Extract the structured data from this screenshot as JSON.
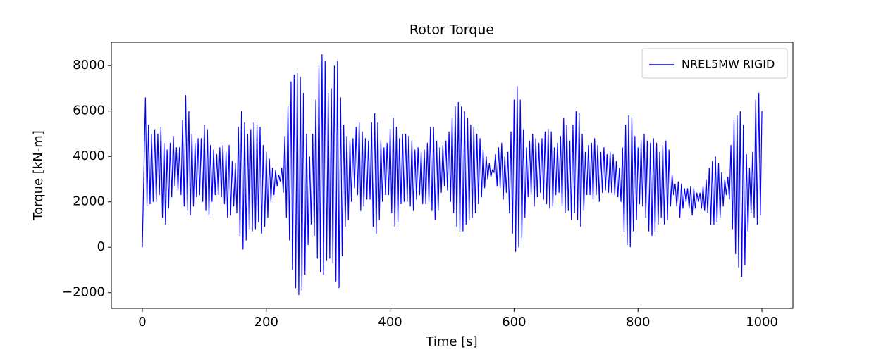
{
  "chart_data": {
    "type": "line",
    "title": "Rotor Torque",
    "x_label": "Time [s]",
    "y_label": "Torque [kN-m]",
    "xlim": [
      -50,
      1050
    ],
    "xticks": [
      0,
      200,
      400,
      600,
      800,
      1000
    ],
    "ylim": [
      -2690,
      9030
    ],
    "yticks": [
      {
        "value": -2000,
        "label": "−2000"
      },
      0,
      2000,
      4000,
      6000,
      8000
    ],
    "legend": "upper right",
    "x": [
      0,
      5,
      7.5,
      10,
      12.5,
      15,
      17.5,
      20,
      22.5,
      25,
      27.5,
      30,
      32.5,
      35,
      37.5,
      40,
      42.5,
      45,
      47.5,
      50,
      52.5,
      55,
      57.5,
      60,
      62.5,
      65,
      67.5,
      70,
      72.5,
      75,
      77.5,
      80,
      82.5,
      85,
      87.5,
      90,
      92.5,
      95,
      97.5,
      100,
      102.5,
      105,
      107.5,
      110,
      112.5,
      115,
      117.5,
      120,
      122.5,
      125,
      127.5,
      130,
      132.5,
      135,
      137.5,
      140,
      142.5,
      145,
      147.5,
      150,
      152.5,
      155,
      157.5,
      160,
      162.5,
      165,
      167.5,
      170,
      172.5,
      175,
      177.5,
      180,
      182.5,
      185,
      187.5,
      190,
      192.5,
      195,
      197.5,
      200,
      202.5,
      205,
      207.5,
      210,
      212.5,
      215,
      217.5,
      220,
      222.5,
      225,
      227.5,
      230,
      232.5,
      235,
      237.5,
      240,
      242.5,
      245,
      247.5,
      250,
      252.5,
      255,
      257.5,
      260,
      262.5,
      265,
      267.5,
      270,
      272.5,
      275,
      277.5,
      280,
      282.5,
      285,
      287.5,
      290,
      292.5,
      295,
      297.5,
      300,
      302.5,
      305,
      307.5,
      310,
      312.5,
      315,
      317.5,
      320,
      322.5,
      325,
      327.5,
      330,
      332.5,
      335,
      337.5,
      340,
      342.5,
      345,
      347.5,
      350,
      352.5,
      355,
      357.5,
      360,
      362.5,
      365,
      367.5,
      370,
      372.5,
      375,
      377.5,
      380,
      382.5,
      385,
      387.5,
      390,
      392.5,
      395,
      397.5,
      400,
      402.5,
      405,
      407.5,
      410,
      412.5,
      415,
      417.5,
      420,
      422.5,
      425,
      427.5,
      430,
      432.5,
      435,
      437.5,
      440,
      442.5,
      445,
      447.5,
      450,
      452.5,
      455,
      457.5,
      460,
      462.5,
      465,
      467.5,
      470,
      472.5,
      475,
      477.5,
      480,
      482.5,
      485,
      487.5,
      490,
      492.5,
      495,
      497.5,
      500,
      502.5,
      505,
      507.5,
      510,
      512.5,
      515,
      517.5,
      520,
      522.5,
      525,
      527.5,
      530,
      532.5,
      535,
      537.5,
      540,
      542.5,
      545,
      547.5,
      550,
      552.5,
      555,
      557.5,
      560,
      562.5,
      565,
      567.5,
      570,
      572.5,
      575,
      577.5,
      580,
      582.5,
      585,
      587.5,
      590,
      592.5,
      595,
      597.5,
      600,
      602.5,
      605,
      607.5,
      610,
      612.5,
      615,
      617.5,
      620,
      622.5,
      625,
      627.5,
      630,
      632.5,
      635,
      637.5,
      640,
      642.5,
      645,
      647.5,
      650,
      652.5,
      655,
      657.5,
      660,
      662.5,
      665,
      667.5,
      670,
      672.5,
      675,
      677.5,
      680,
      682.5,
      685,
      687.5,
      690,
      692.5,
      695,
      697.5,
      700,
      702.5,
      705,
      707.5,
      710,
      712.5,
      715,
      717.5,
      720,
      722.5,
      725,
      727.5,
      730,
      732.5,
      735,
      737.5,
      740,
      742.5,
      745,
      747.5,
      750,
      752.5,
      755,
      757.5,
      760,
      762.5,
      765,
      767.5,
      770,
      772.5,
      775,
      777.5,
      780,
      782.5,
      785,
      787.5,
      790,
      792.5,
      795,
      797.5,
      800,
      802.5,
      805,
      807.5,
      810,
      812.5,
      815,
      817.5,
      820,
      822.5,
      825,
      827.5,
      830,
      832.5,
      835,
      837.5,
      840,
      842.5,
      845,
      847.5,
      850,
      852.5,
      855,
      857.5,
      860,
      862.5,
      865,
      867.5,
      870,
      872.5,
      875,
      877.5,
      880,
      882.5,
      885,
      887.5,
      890,
      892.5,
      895,
      897.5,
      900,
      902.5,
      905,
      907.5,
      910,
      912.5,
      915,
      917.5,
      920,
      922.5,
      925,
      927.5,
      930,
      932.5,
      935,
      937.5,
      940,
      942.5,
      945,
      947.5,
      950,
      952.5,
      955,
      957.5,
      960,
      962.5,
      965,
      967.5,
      970,
      972.5,
      975,
      977.5,
      980,
      982.5,
      985,
      987.5,
      990,
      992.5,
      995,
      997.5,
      1000
    ],
    "series": [
      {
        "name": "NREL5MW RIGID",
        "color": "#0000ff",
        "values": [
          0,
          6600,
          1800,
          5400,
          1900,
          5000,
          2000,
          5200,
          2000,
          5000,
          2300,
          5300,
          1300,
          4600,
          1000,
          4300,
          1700,
          4600,
          2200,
          4900,
          2700,
          4400,
          2500,
          4400,
          2300,
          5600,
          1800,
          6700,
          1600,
          6000,
          1400,
          5000,
          1800,
          4600,
          2200,
          4800,
          2300,
          4800,
          2000,
          5400,
          1600,
          5200,
          1400,
          4500,
          2000,
          4300,
          2300,
          4100,
          2300,
          4400,
          2200,
          4500,
          1900,
          4200,
          1300,
          4500,
          1400,
          3800,
          1800,
          3700,
          1500,
          5300,
          500,
          6000,
          -100,
          5500,
          300,
          5000,
          800,
          5200,
          700,
          5500,
          800,
          5400,
          1100,
          5300,
          600,
          4500,
          900,
          4200,
          1300,
          3900,
          2000,
          3500,
          2300,
          3400,
          2700,
          3200,
          2900,
          3500,
          2400,
          4900,
          1300,
          6200,
          300,
          7300,
          -1000,
          7600,
          -1800,
          7700,
          -2100,
          7500,
          -1900,
          6800,
          -1200,
          5000,
          100,
          4000,
          1000,
          5000,
          500,
          6500,
          -500,
          8000,
          -1100,
          8500,
          -1200,
          8200,
          -600,
          6800,
          -500,
          7000,
          -700,
          8000,
          -1500,
          8200,
          -1800,
          6600,
          -400,
          5400,
          900,
          4900,
          1200,
          4700,
          2000,
          4800,
          2600,
          5300,
          2300,
          5500,
          1600,
          5100,
          1800,
          4800,
          2100,
          4700,
          2100,
          5500,
          900,
          5900,
          600,
          5500,
          1200,
          4700,
          2000,
          4400,
          2300,
          4600,
          2300,
          5200,
          1500,
          5700,
          900,
          5300,
          1100,
          4800,
          1900,
          5000,
          2000,
          5000,
          2000,
          4900,
          1800,
          4700,
          1600,
          4300,
          2100,
          4400,
          2300,
          4200,
          1900,
          4300,
          1900,
          4600,
          2000,
          5300,
          1600,
          5300,
          1200,
          4700,
          1600,
          4400,
          2400,
          4500,
          2700,
          4700,
          2500,
          5100,
          2000,
          5700,
          1500,
          6200,
          900,
          6400,
          700,
          6200,
          700,
          6000,
          1000,
          5700,
          1200,
          5400,
          1300,
          5300,
          1500,
          5000,
          1900,
          4800,
          2200,
          4300,
          2600,
          4000,
          3000,
          3700,
          3100,
          3400,
          3300,
          4100,
          2700,
          4400,
          2600,
          4600,
          2100,
          4000,
          2400,
          4200,
          1500,
          5100,
          600,
          6500,
          -200,
          7100,
          0,
          6500,
          400,
          5200,
          1300,
          4400,
          2200,
          4700,
          2300,
          5000,
          1800,
          4800,
          2200,
          4600,
          2400,
          4800,
          2100,
          5100,
          1900,
          5200,
          1700,
          5100,
          1800,
          4400,
          2300,
          4600,
          2400,
          4900,
          1800,
          5700,
          1500,
          5400,
          1600,
          4700,
          1200,
          5400,
          1500,
          6000,
          1200,
          5900,
          900,
          5000,
          1600,
          4200,
          2300,
          4500,
          2300,
          4600,
          2100,
          4800,
          2300,
          4500,
          2000,
          4200,
          2400,
          4400,
          2500,
          4100,
          2400,
          4200,
          2400,
          4100,
          2300,
          3800,
          2200,
          3500,
          2000,
          4400,
          700,
          5400,
          100,
          5800,
          0,
          5700,
          700,
          4900,
          1200,
          4400,
          1900,
          4700,
          1800,
          5000,
          1300,
          4700,
          700,
          4600,
          500,
          4800,
          700,
          4600,
          1000,
          4200,
          1300,
          4500,
          1000,
          4700,
          1200,
          4300,
          1800,
          3200,
          2300,
          2800,
          1800,
          2900,
          1300,
          2800,
          1700,
          2600,
          2000,
          2600,
          1700,
          2700,
          1400,
          2600,
          1700,
          2400,
          2000,
          2400,
          1700,
          2700,
          1600,
          3000,
          1500,
          3500,
          1000,
          3800,
          1000,
          4000,
          1100,
          3700,
          1300,
          3300,
          1800,
          3000,
          2300,
          3100,
          2100,
          4500,
          800,
          5600,
          -300,
          5800,
          -900,
          6000,
          -1300,
          5400,
          -800,
          4100,
          700,
          3500,
          1500,
          4200,
          1300,
          6500,
          1000,
          6800,
          1400,
          6000
        ]
      }
    ]
  }
}
